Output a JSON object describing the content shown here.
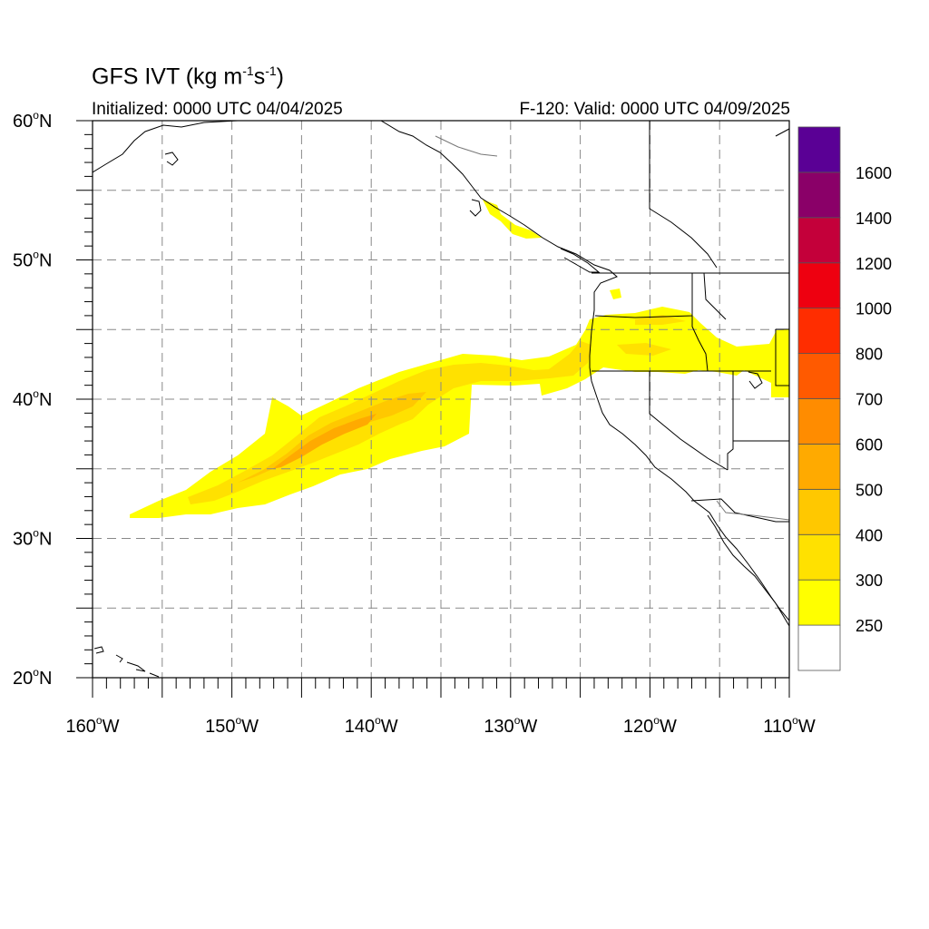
{
  "title": {
    "text": "GFS IVT (kg m",
    "exp1": "-1",
    "mid": "s",
    "exp2": "-1",
    "close": ")"
  },
  "subtitle_left": "Initialized: 0000 UTC 04/04/2025",
  "subtitle_right": "F-120: Valid: 0000 UTC 04/09/2025",
  "lat_labels": [
    "60",
    "50",
    "40",
    "30",
    "20"
  ],
  "lat_suffix": "N",
  "lon_labels": [
    "160",
    "150",
    "140",
    "130",
    "120",
    "110"
  ],
  "lon_suffix": "W",
  "degree_mark": "o",
  "colorbar": {
    "levels": [
      250,
      300,
      400,
      500,
      600,
      700,
      800,
      1000,
      1200,
      1400,
      1600
    ],
    "labels": [
      "250",
      "300",
      "400",
      "500",
      "600",
      "700",
      "800",
      "1000",
      "1200",
      "1400",
      "1600"
    ],
    "colors": [
      "#ffffff",
      "#ffff00",
      "#ffe100",
      "#ffc800",
      "#ffaa00",
      "#ff8c00",
      "#ff5a00",
      "#ff2d00",
      "#ee0010",
      "#c4003a",
      "#8a0068",
      "#5a0095"
    ]
  },
  "map": {
    "lon_range": [
      -160,
      -110
    ],
    "lat_range": [
      20,
      60
    ],
    "grid_lon_step": 5,
    "grid_lat_step": 5
  }
}
